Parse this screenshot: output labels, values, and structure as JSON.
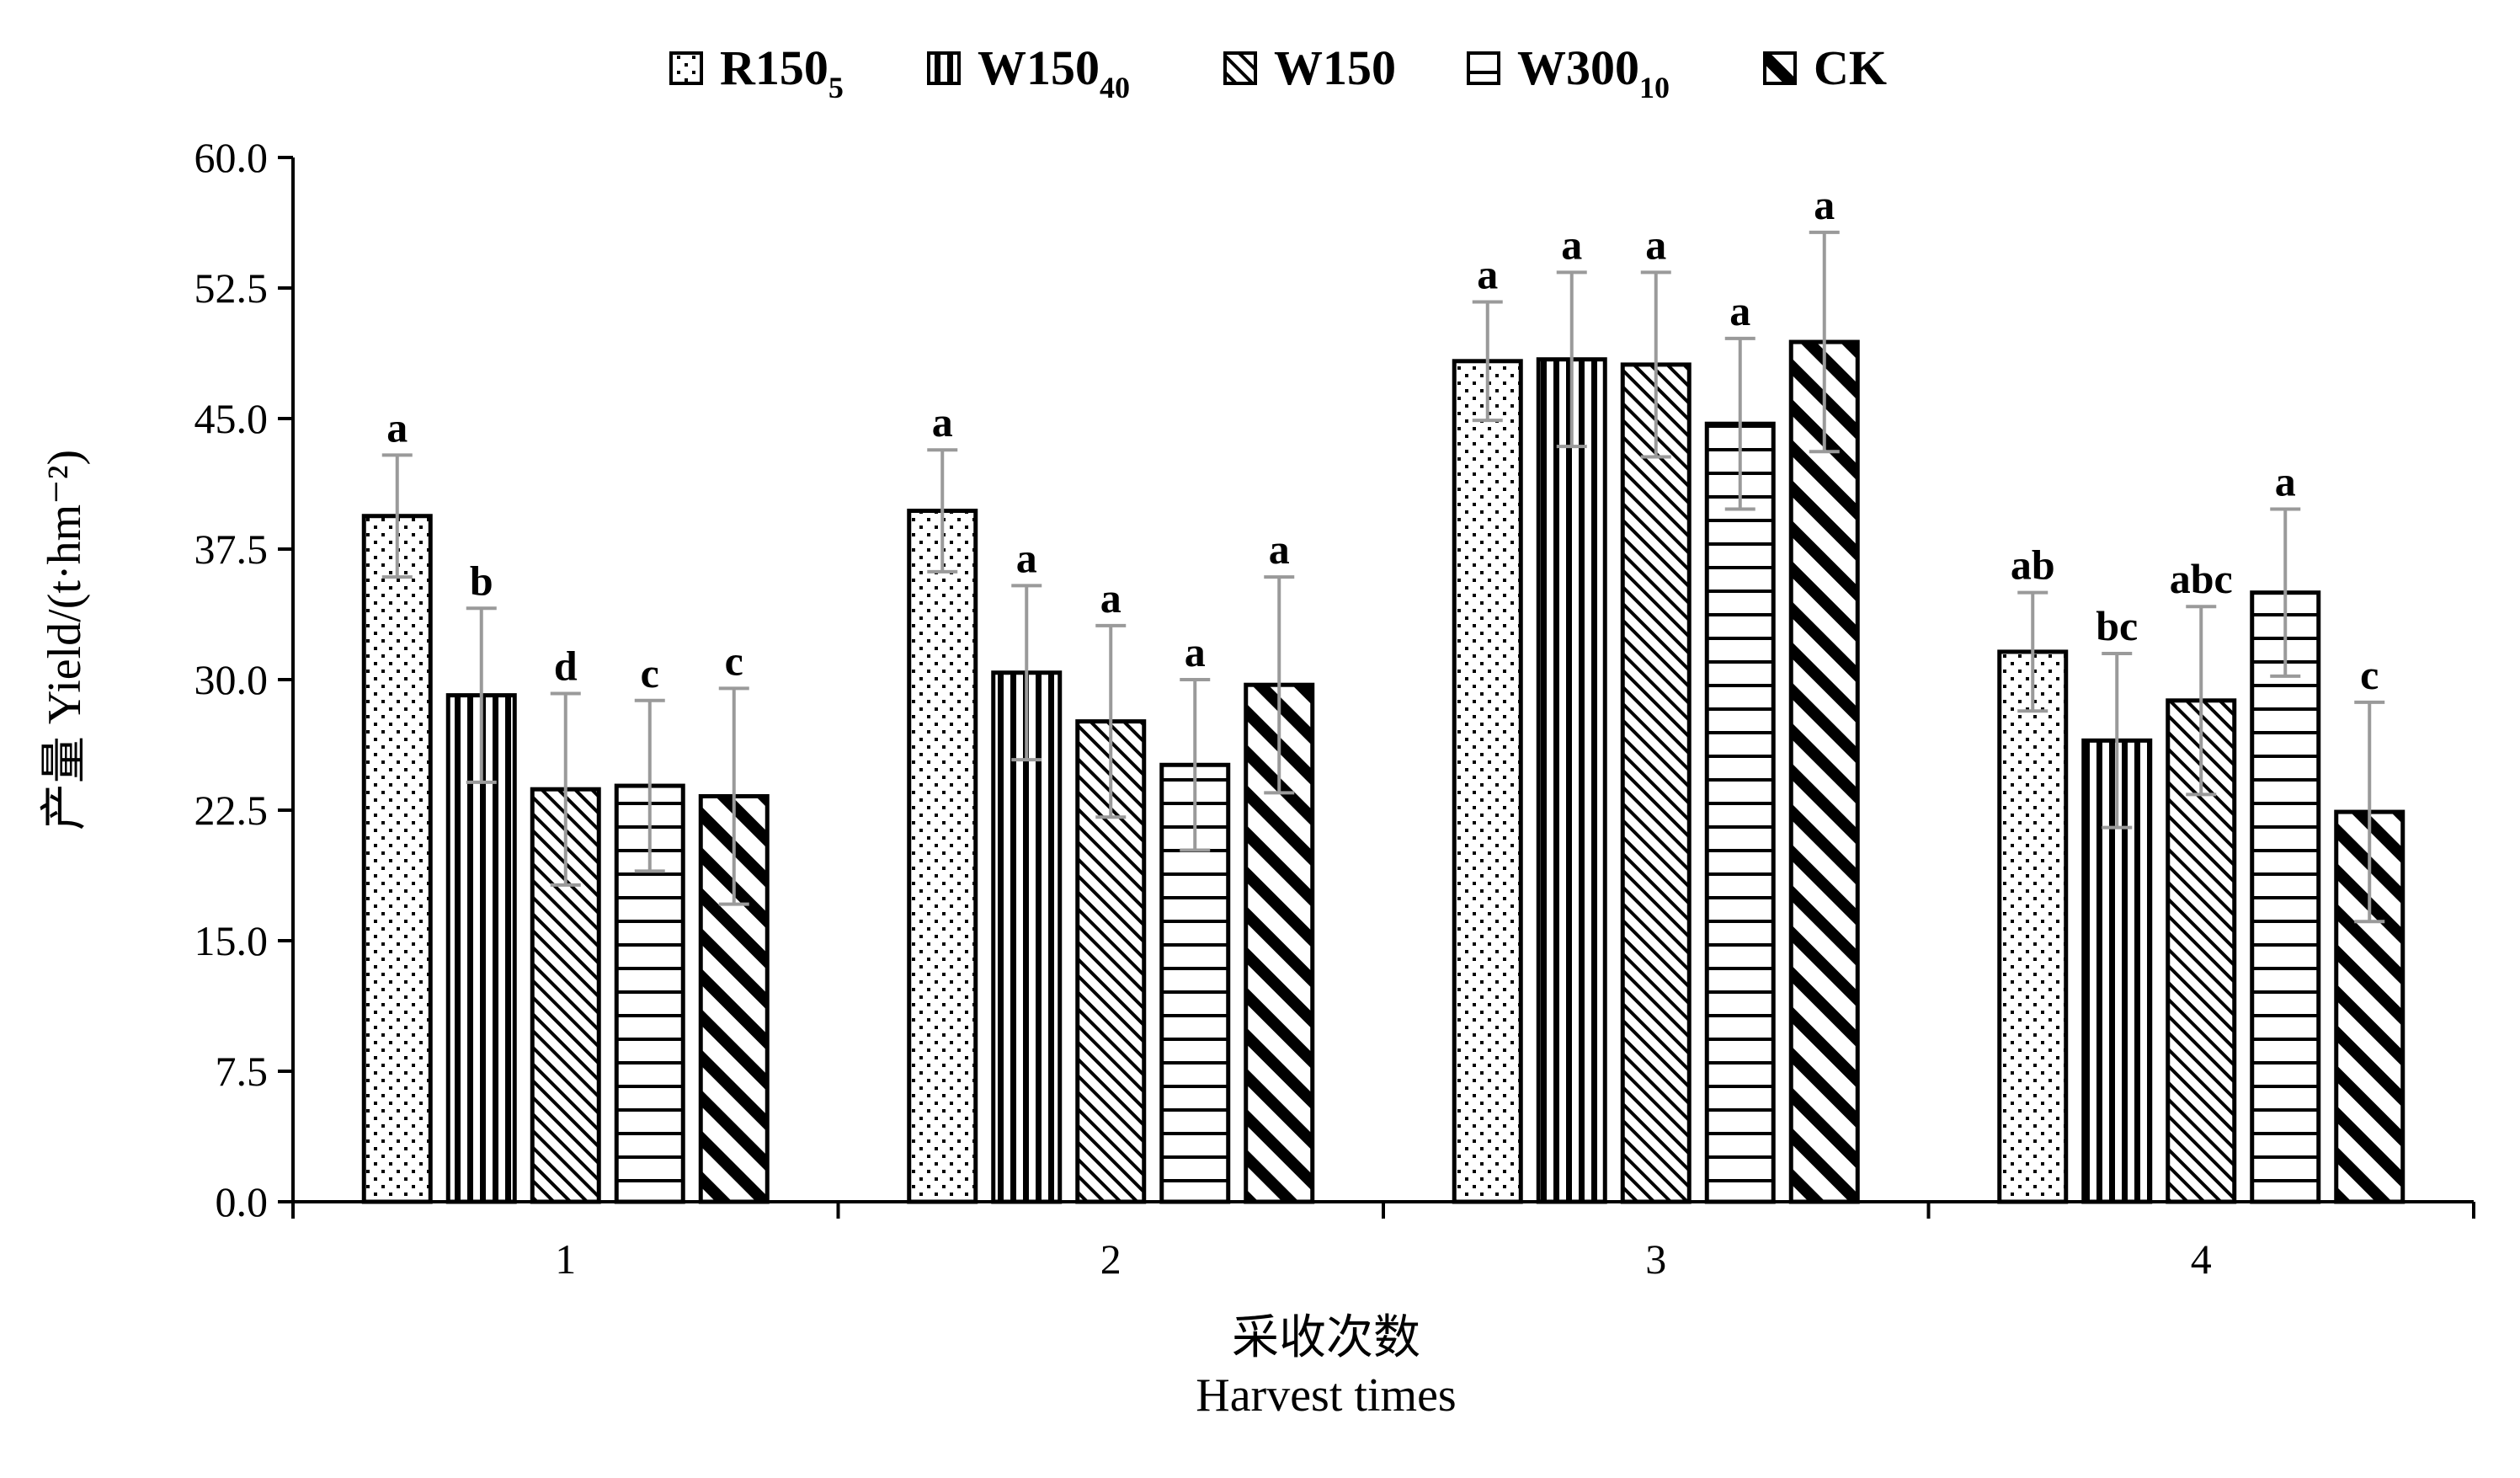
{
  "chart_data": {
    "type": "bar",
    "categories": [
      "1",
      "2",
      "3",
      "4"
    ],
    "ylim": [
      0,
      60
    ],
    "yticks": [
      "0.0",
      "7.5",
      "15.0",
      "22.5",
      "30.0",
      "37.5",
      "45.0",
      "52.5",
      "60.0"
    ],
    "ylabel": "产量 Yield/(t·hm⁻²)",
    "xlabel_cn": "采收次数",
    "xlabel_en": "Harvest times",
    "legend_position": "top",
    "grid": false,
    "series": [
      {
        "name": "R150",
        "name_sub": "5",
        "pattern": "dots",
        "values": [
          39.4,
          39.7,
          48.3,
          31.6
        ],
        "errors": [
          3.5,
          3.5,
          3.4,
          3.4
        ],
        "labels": [
          "a",
          "a",
          "a",
          "ab"
        ]
      },
      {
        "name": "W150",
        "name_sub": "40",
        "pattern": "vertical",
        "values": [
          29.1,
          30.4,
          48.4,
          26.5
        ],
        "errors": [
          5.0,
          5.0,
          5.0,
          5.0
        ],
        "labels": [
          "b",
          "a",
          "a",
          "bc"
        ]
      },
      {
        "name": "W150",
        "name_sub": "",
        "pattern": "diagonal-fine",
        "values": [
          23.7,
          27.6,
          48.1,
          28.8
        ],
        "errors": [
          5.5,
          5.5,
          5.3,
          5.4
        ],
        "labels": [
          "d",
          "a",
          "a",
          "abc"
        ]
      },
      {
        "name": "W300",
        "name_sub": "10",
        "pattern": "horizontal",
        "values": [
          23.9,
          25.1,
          44.7,
          35.0
        ],
        "errors": [
          4.9,
          4.9,
          4.9,
          4.8
        ],
        "labels": [
          "c",
          "a",
          "a",
          "a"
        ]
      },
      {
        "name": "CK",
        "name_sub": "",
        "pattern": "diagonal-bold",
        "values": [
          23.3,
          29.7,
          49.4,
          22.4
        ],
        "errors": [
          6.2,
          6.2,
          6.3,
          6.3
        ],
        "labels": [
          "c",
          "a",
          "a",
          "c"
        ]
      }
    ]
  }
}
